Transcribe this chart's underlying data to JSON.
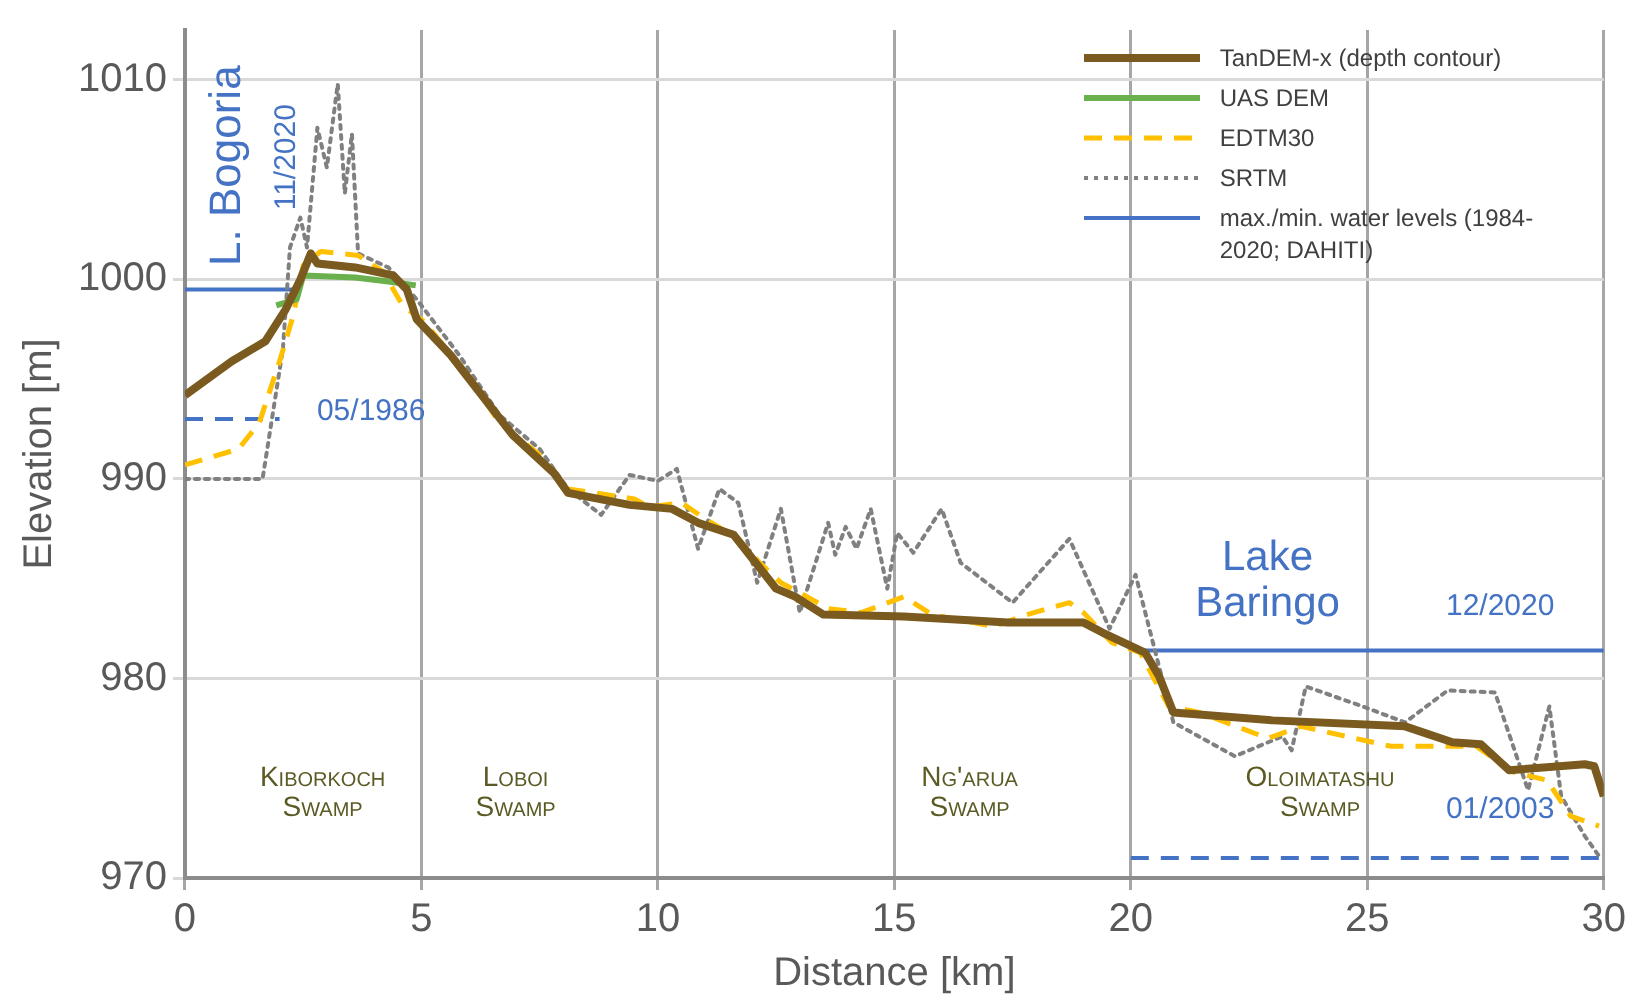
{
  "chart_data": {
    "type": "line",
    "xlabel": "Distance [km]",
    "ylabel": "Elevation [m]",
    "xlim": [
      0,
      30
    ],
    "xticks": [
      0,
      5,
      10,
      15,
      20,
      25,
      30
    ],
    "ylim": [
      970,
      1012.5
    ],
    "yticks": [
      970,
      980,
      990,
      1000,
      1010
    ],
    "grid": true,
    "legend": "top right",
    "marker": "none",
    "line_style": "solid",
    "series": [
      {
        "name": "TanDEM-x (depth contour)",
        "color": "#7a5a1e",
        "x": [
          0,
          0.99,
          1.7,
          2.13,
          2.44,
          2.66,
          2.8,
          3.6,
          4.4,
          4.69,
          4.9,
          5.62,
          6.93,
          7.8,
          8.1,
          9.4,
          10.3,
          10.85,
          11.6,
          12.0,
          12.5,
          12.9,
          13.5,
          15.2,
          17.4,
          19.0,
          19.4,
          19.85,
          20.3,
          20.6,
          20.9,
          23.0,
          25.8,
          26.8,
          27.4,
          28.0,
          29.6,
          29.8,
          30.0
        ],
        "values": [
          994.2,
          995.9,
          996.9,
          998.5,
          1000.0,
          1001.3,
          1000.8,
          1000.6,
          1000.2,
          999.5,
          998.0,
          996.2,
          992.2,
          990.3,
          989.3,
          988.7,
          988.5,
          987.8,
          987.2,
          986.0,
          984.5,
          984.1,
          983.2,
          983.1,
          982.8,
          982.8,
          982.3,
          981.8,
          981.3,
          980.1,
          978.3,
          977.9,
          977.6,
          976.8,
          976.7,
          975.4,
          975.7,
          975.6,
          974.1
        ]
      },
      {
        "name": "UAS DEM",
        "color": "#6ab04c",
        "x": [
          1.93,
          2.36,
          2.5,
          3.6,
          4.3,
          4.88
        ],
        "values": [
          998.7,
          999.0,
          1000.2,
          1000.1,
          999.9,
          999.7
        ]
      },
      {
        "name": "EDTM30",
        "color": "#ffc000",
        "line_style": "dashed",
        "x": [
          0,
          1.13,
          1.57,
          2.0,
          2.29,
          2.5,
          2.87,
          3.66,
          4.18,
          4.6,
          5.05,
          6.05,
          6.65,
          7.5,
          8.1,
          9.5,
          9.8,
          10.5,
          11.0,
          11.7,
          12.15,
          12.6,
          13.0,
          13.6,
          14.3,
          15.2,
          15.8,
          17.1,
          17.8,
          18.7,
          19.0,
          19.6,
          20.2,
          20.8,
          21.45,
          22.9,
          23.6,
          25.5,
          27.3,
          28.1,
          28.8,
          29.3,
          29.9
        ],
        "values": [
          990.7,
          991.5,
          992.8,
          995.9,
          998.2,
          1000.7,
          1001.4,
          1001.2,
          1000.4,
          998.7,
          997.9,
          995.0,
          992.8,
          991.2,
          989.5,
          989.0,
          988.6,
          988.8,
          988.0,
          987.0,
          985.8,
          984.8,
          984.3,
          983.5,
          983.3,
          984.1,
          983.2,
          982.6,
          983.2,
          983.8,
          983.3,
          981.8,
          981.3,
          978.6,
          978.3,
          977.0,
          977.6,
          976.6,
          976.6,
          975.3,
          974.9,
          973.1,
          972.6
        ]
      },
      {
        "name": "SRTM",
        "color": "#808080",
        "line_style": "dotted",
        "x": [
          0,
          1.64,
          2.07,
          2.22,
          2.44,
          2.58,
          2.8,
          3.0,
          3.23,
          3.38,
          3.53,
          3.66,
          4.3,
          4.9,
          5.8,
          6.65,
          7.5,
          8.1,
          8.8,
          9.4,
          10.0,
          10.4,
          10.85,
          11.3,
          11.7,
          12.1,
          12.6,
          13.0,
          13.6,
          13.75,
          13.97,
          14.2,
          14.5,
          14.85,
          15.06,
          15.4,
          16.0,
          16.4,
          17.5,
          18.7,
          19.55,
          20.1,
          20.9,
          22.2,
          23.2,
          23.4,
          23.7,
          24.9,
          25.8,
          26.7,
          27.7,
          28.4,
          28.85,
          29.1,
          29.6,
          29.9
        ],
        "values": [
          990.0,
          990.0,
          996.5,
          1001.6,
          1003.1,
          1001.6,
          1007.6,
          1005.6,
          1009.8,
          1004.3,
          1007.3,
          1001.3,
          1000.6,
          999.0,
          996.2,
          993.2,
          991.5,
          989.5,
          988.2,
          990.2,
          989.9,
          990.5,
          986.5,
          989.5,
          988.8,
          984.8,
          988.5,
          983.3,
          987.8,
          986.2,
          987.6,
          986.5,
          988.5,
          984.5,
          987.3,
          986.3,
          988.5,
          985.8,
          983.8,
          987.0,
          982.5,
          985.2,
          977.8,
          976.1,
          977.1,
          976.4,
          979.6,
          978.6,
          977.8,
          979.4,
          979.3,
          974.4,
          978.6,
          974.1,
          972.1,
          971.1
        ]
      },
      {
        "name": "max./min. water levels (1984-2020; DAHITI)",
        "color": "#4472c4",
        "x": [
          0,
          2.3
        ],
        "values": [
          999.5,
          999.5
        ]
      },
      {
        "color": "#4472c4",
        "line_style": "dashed",
        "x": [
          0,
          2.0
        ],
        "values": [
          993.0,
          993.0
        ]
      },
      {
        "color": "#4472c4",
        "x": [
          20.2,
          30
        ],
        "values": [
          981.4,
          981.4
        ]
      },
      {
        "color": "#4472c4",
        "line_style": "dashed",
        "x": [
          20.0,
          30
        ],
        "values": [
          971.0,
          971.0
        ]
      }
    ],
    "annotations": [
      "L. Bogoria",
      "11/2020",
      "05/1986",
      "Lake Baringo",
      "12/2020",
      "01/2003",
      "Kiborkoch Swamp",
      "Loboi Swamp",
      "Ng'arua Swamp",
      "Oloimatashu Swamp"
    ]
  }
}
